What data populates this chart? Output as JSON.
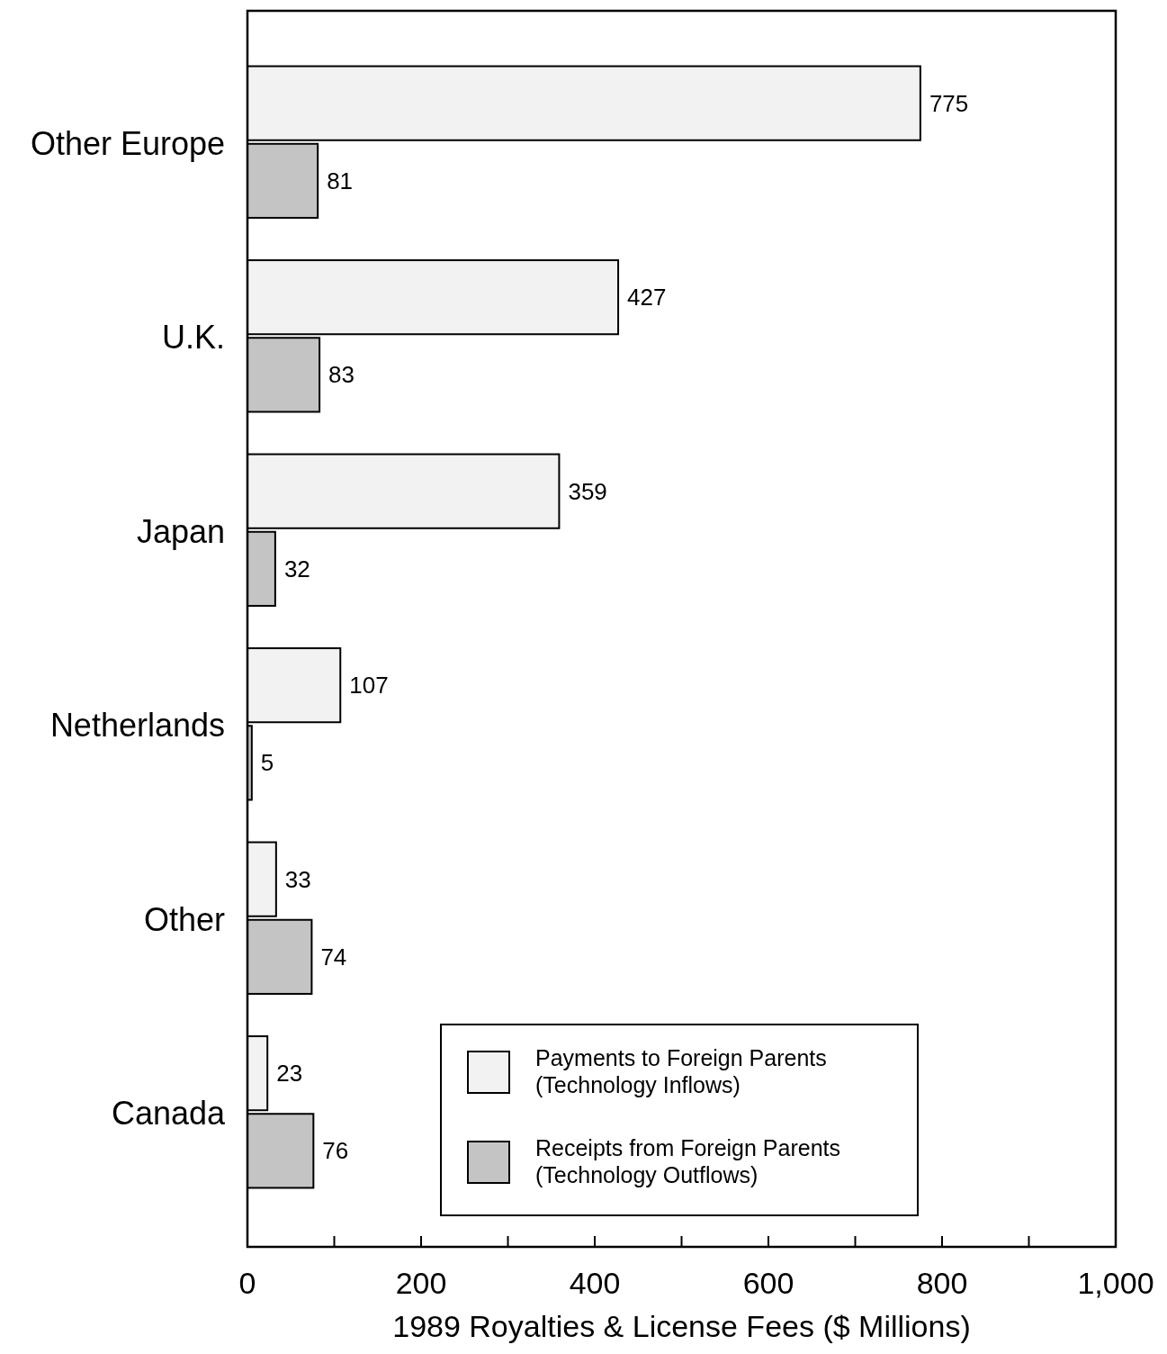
{
  "chart_data": {
    "type": "bar",
    "orientation": "horizontal",
    "xlabel": "1989 Royalties & License Fees ($ Millions)",
    "categories": [
      "Other Europe",
      "U.K.",
      "Japan",
      "Netherlands",
      "Other",
      "Canada"
    ],
    "series": [
      {
        "name": "Payments to Foreign Parents (Technology Inflows)",
        "color": "#f2f2f2",
        "values": [
          775,
          427,
          359,
          107,
          33,
          23
        ]
      },
      {
        "name": "Receipts from Foreign Parents (Technology Outflows)",
        "color": "#c4c4c4",
        "values": [
          81,
          83,
          32,
          5,
          74,
          76
        ]
      }
    ],
    "xlim": [
      0,
      1000
    ],
    "xticks": [
      0,
      {
        "value": 100,
        "label": null
      },
      200,
      {
        "value": 300,
        "label": null
      },
      400,
      {
        "value": 500,
        "label": null
      },
      600,
      {
        "value": 700,
        "label": null
      },
      800,
      {
        "value": 900,
        "label": null
      },
      {
        "value": 1000,
        "label": "1,000"
      }
    ],
    "data_labels": true,
    "legend": "bottom right",
    "grid": false
  }
}
